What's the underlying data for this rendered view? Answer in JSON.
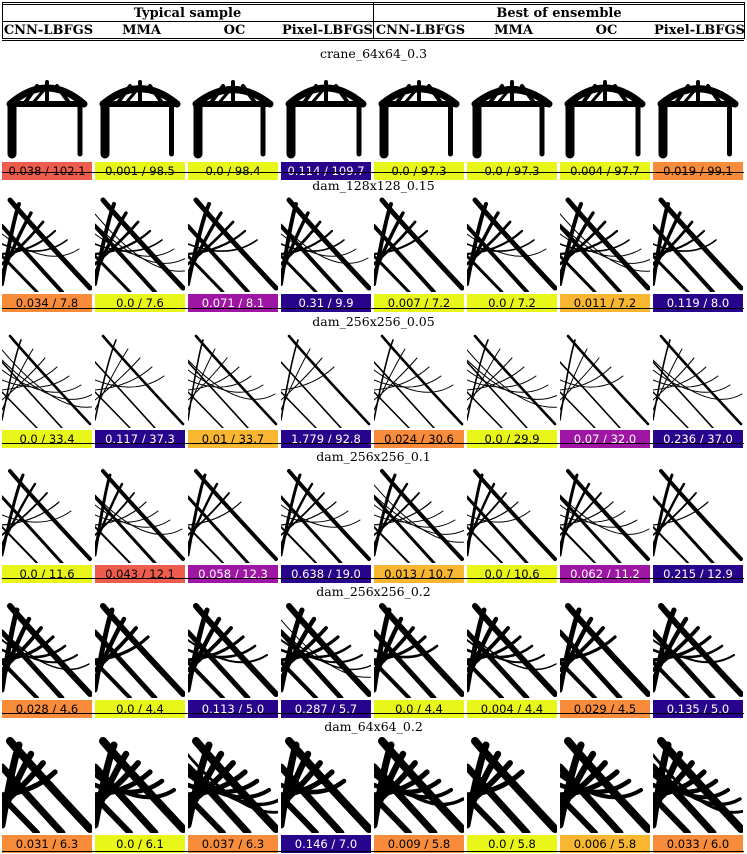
{
  "header": {
    "group_left": "Typical sample",
    "group_right": "Best of ensemble",
    "columns": [
      "CNN-LBFGS",
      "MMA",
      "OC",
      "Pixel-LBFGS",
      "CNN-LBFGS",
      "MMA",
      "OC",
      "Pixel-LBFGS"
    ]
  },
  "colors": {
    "yellow": "#e8f719",
    "orange": "#f88c3b",
    "gold": "#f9b731",
    "red": "#ee5c4e",
    "purple": "#9e16a3",
    "navy": "#28048c"
  },
  "problems": [
    {
      "name": "crane_64x64_0.3",
      "shape": "crane",
      "results": [
        {
          "text": "0.038 / 102.1",
          "color": "red"
        },
        {
          "text": "0.001 / 98.5",
          "color": "yellow"
        },
        {
          "text": "0.0 / 98.4",
          "color": "yellow"
        },
        {
          "text": "0.114 / 109.7",
          "color": "navy"
        },
        {
          "text": "0.0 / 97.3",
          "color": "yellow"
        },
        {
          "text": "0.0 / 97.3",
          "color": "yellow"
        },
        {
          "text": "0.004 / 97.7",
          "color": "yellow"
        },
        {
          "text": "0.019 / 99.1",
          "color": "orange"
        }
      ]
    },
    {
      "name": "dam_128x128_0.15",
      "shape": "dam",
      "results": [
        {
          "text": "0.034 / 7.8",
          "color": "orange"
        },
        {
          "text": "0.0 / 7.6",
          "color": "yellow"
        },
        {
          "text": "0.071 / 8.1",
          "color": "purple"
        },
        {
          "text": "0.31 / 9.9",
          "color": "navy"
        },
        {
          "text": "0.007 / 7.2",
          "color": "yellow"
        },
        {
          "text": "0.0 / 7.2",
          "color": "yellow"
        },
        {
          "text": "0.011 / 7.2",
          "color": "gold"
        },
        {
          "text": "0.119 / 8.0",
          "color": "navy"
        }
      ]
    },
    {
      "name": "dam_256x256_0.05",
      "shape": "dam",
      "results": [
        {
          "text": "0.0 / 33.4",
          "color": "yellow"
        },
        {
          "text": "0.117 / 37.3",
          "color": "navy"
        },
        {
          "text": "0.01 / 33.7",
          "color": "gold"
        },
        {
          "text": "1.779 / 92.8",
          "color": "navy"
        },
        {
          "text": "0.024 / 30.6",
          "color": "orange"
        },
        {
          "text": "0.0 / 29.9",
          "color": "yellow"
        },
        {
          "text": "0.07 / 32.0",
          "color": "purple"
        },
        {
          "text": "0.236 / 37.0",
          "color": "navy"
        }
      ]
    },
    {
      "name": "dam_256x256_0.1",
      "shape": "dam",
      "results": [
        {
          "text": "0.0 / 11.6",
          "color": "yellow"
        },
        {
          "text": "0.043 / 12.1",
          "color": "red"
        },
        {
          "text": "0.058 / 12.3",
          "color": "purple"
        },
        {
          "text": "0.638 / 19.0",
          "color": "navy"
        },
        {
          "text": "0.013 / 10.7",
          "color": "gold"
        },
        {
          "text": "0.0 / 10.6",
          "color": "yellow"
        },
        {
          "text": "0.062 / 11.2",
          "color": "purple"
        },
        {
          "text": "0.215 / 12.9",
          "color": "navy"
        }
      ]
    },
    {
      "name": "dam_256x256_0.2",
      "shape": "dam",
      "results": [
        {
          "text": "0.028 / 4.6",
          "color": "orange"
        },
        {
          "text": "0.0 / 4.4",
          "color": "yellow"
        },
        {
          "text": "0.113 / 5.0",
          "color": "navy"
        },
        {
          "text": "0.287 / 5.7",
          "color": "navy"
        },
        {
          "text": "0.0 / 4.4",
          "color": "yellow"
        },
        {
          "text": "0.004 / 4.4",
          "color": "yellow"
        },
        {
          "text": "0.029 / 4.5",
          "color": "orange"
        },
        {
          "text": "0.135 / 5.0",
          "color": "navy"
        }
      ]
    },
    {
      "name": "dam_64x64_0.2",
      "shape": "dam",
      "results": [
        {
          "text": "0.031 / 6.3",
          "color": "orange"
        },
        {
          "text": "0.0 / 6.1",
          "color": "yellow"
        },
        {
          "text": "0.037 / 6.3",
          "color": "orange"
        },
        {
          "text": "0.146 / 7.0",
          "color": "navy"
        },
        {
          "text": "0.009 / 5.8",
          "color": "orange"
        },
        {
          "text": "0.0 / 5.8",
          "color": "yellow"
        },
        {
          "text": "0.006 / 5.8",
          "color": "gold"
        },
        {
          "text": "0.033 / 6.0",
          "color": "orange"
        }
      ]
    }
  ]
}
